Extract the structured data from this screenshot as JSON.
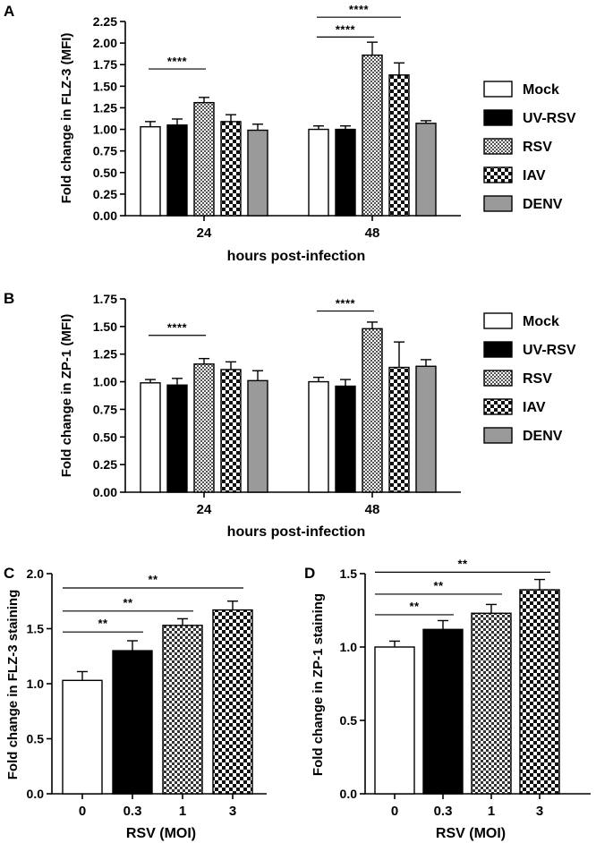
{
  "legend_items": [
    "Mock",
    "UV-RSV",
    "RSV",
    "IAV",
    "DENV"
  ],
  "series_colors": {
    "Mock": "#ffffff",
    "UV-RSV": "#000000",
    "RSV": "#8a8a8a",
    "IAV": "#333333",
    "DENV": "#9a9a9a"
  },
  "chart_data": [
    {
      "panel": "A",
      "type": "bar",
      "categories": [
        "24",
        "48"
      ],
      "xlabel": "hours post-infection",
      "ylabel": "Fold change in FLZ-3 (MFI)",
      "ylim": [
        0,
        2.25
      ],
      "yticks": [
        "0.00",
        "0.25",
        "0.50",
        "0.75",
        "1.00",
        "1.25",
        "1.50",
        "1.75",
        "2.00",
        "2.25"
      ],
      "legend": [
        "Mock",
        "UV-RSV",
        "RSV",
        "IAV",
        "DENV"
      ],
      "series": [
        {
          "name": "Mock",
          "values": [
            1.03,
            1.0
          ],
          "errors": [
            0.06,
            0.04
          ]
        },
        {
          "name": "UV-RSV",
          "values": [
            1.05,
            1.0
          ],
          "errors": [
            0.07,
            0.04
          ]
        },
        {
          "name": "RSV",
          "values": [
            1.31,
            1.86
          ],
          "errors": [
            0.06,
            0.15
          ]
        },
        {
          "name": "IAV",
          "values": [
            1.09,
            1.63
          ],
          "errors": [
            0.08,
            0.14
          ]
        },
        {
          "name": "DENV",
          "values": [
            0.99,
            1.07
          ],
          "errors": [
            0.07,
            0.03
          ]
        }
      ],
      "significance": [
        {
          "label": "****",
          "category": "24",
          "from": "Mock",
          "to": "RSV",
          "y": 1.7
        },
        {
          "label": "****",
          "category": "48",
          "from": "Mock",
          "to": "RSV",
          "y": 2.07
        },
        {
          "label": "****",
          "category": "48",
          "from": "Mock",
          "to": "IAV",
          "y": 2.3
        }
      ]
    },
    {
      "panel": "B",
      "type": "bar",
      "categories": [
        "24",
        "48"
      ],
      "xlabel": "hours post-infection",
      "ylabel": "Fold change in  ZP-1 (MFI)",
      "ylim": [
        0,
        1.75
      ],
      "yticks": [
        "0.00",
        "0.25",
        "0.50",
        "0.75",
        "1.00",
        "1.25",
        "1.50",
        "1.75"
      ],
      "legend": [
        "Mock",
        "UV-RSV",
        "RSV",
        "IAV",
        "DENV"
      ],
      "series": [
        {
          "name": "Mock",
          "values": [
            0.99,
            1.0
          ],
          "errors": [
            0.03,
            0.04
          ]
        },
        {
          "name": "UV-RSV",
          "values": [
            0.97,
            0.96
          ],
          "errors": [
            0.06,
            0.06
          ]
        },
        {
          "name": "RSV",
          "values": [
            1.16,
            1.48
          ],
          "errors": [
            0.05,
            0.06
          ]
        },
        {
          "name": "IAV",
          "values": [
            1.11,
            1.13
          ],
          "errors": [
            0.07,
            0.23
          ]
        },
        {
          "name": "DENV",
          "values": [
            1.01,
            1.14
          ],
          "errors": [
            0.09,
            0.06
          ]
        }
      ],
      "significance": [
        {
          "label": "****",
          "category": "24",
          "from": "Mock",
          "to": "RSV",
          "y": 1.42
        },
        {
          "label": "****",
          "category": "48",
          "from": "Mock",
          "to": "RSV",
          "y": 1.64
        }
      ]
    },
    {
      "panel": "C",
      "type": "bar",
      "categories": [
        "0",
        "0.3",
        "1",
        "3"
      ],
      "xlabel": "RSV (MOI)",
      "ylabel": "Fold change in FLZ-3 staining",
      "ylim": [
        0,
        2.0
      ],
      "yticks": [
        "0.0",
        "0.5",
        "1.0",
        "1.5",
        "2.0"
      ],
      "values": [
        1.03,
        1.3,
        1.53,
        1.67
      ],
      "errors": [
        0.08,
        0.09,
        0.06,
        0.08
      ],
      "significance": [
        {
          "label": "**",
          "from": "0",
          "to": "0.3",
          "y": 1.47
        },
        {
          "label": "**",
          "from": "0",
          "to": "1",
          "y": 1.66
        },
        {
          "label": "**",
          "from": "0",
          "to": "3",
          "y": 1.87
        }
      ]
    },
    {
      "panel": "D",
      "type": "bar",
      "categories": [
        "0",
        "0.3",
        "1",
        "3"
      ],
      "xlabel": "RSV (MOI)",
      "ylabel": "Fold change in ZP-1 staining",
      "ylim": [
        0,
        1.5
      ],
      "yticks": [
        "0.0",
        "0.5",
        "1.0",
        "1.5"
      ],
      "values": [
        1.0,
        1.12,
        1.23,
        1.39
      ],
      "errors": [
        0.04,
        0.06,
        0.06,
        0.07
      ],
      "significance": [
        {
          "label": "**",
          "from": "0",
          "to": "0.3",
          "y": 1.22
        },
        {
          "label": "**",
          "from": "0",
          "to": "1",
          "y": 1.36
        },
        {
          "label": "**",
          "from": "0",
          "to": "3",
          "y": 1.51
        }
      ]
    }
  ]
}
